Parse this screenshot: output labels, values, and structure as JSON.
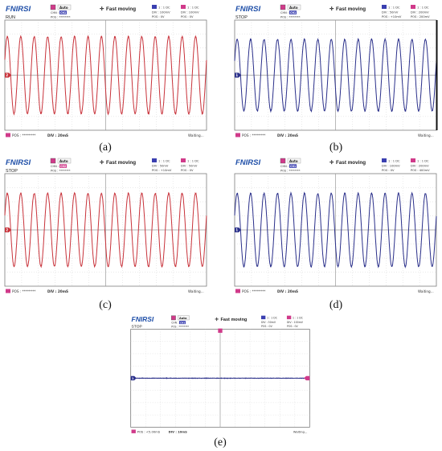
{
  "panels": [
    {
      "id": "a",
      "caption": "(a)",
      "brand": "FNIRSI",
      "status": "RUN",
      "mode": "Fast moving",
      "trig_mode": "Auto",
      "chn_label": "CHN :",
      "chn_value": "CH1",
      "pos_label": "POS : ********",
      "ch1": {
        "header": "1 : 1 DC",
        "div": "DIV : 100mV",
        "pos": "POS : 0V"
      },
      "ch2": {
        "header": "1 : 1 DC",
        "div": "DIV : 100mV",
        "pos": "POS : 0V"
      },
      "bottom_pos": "POS : ********",
      "bottom_div": "DIV : 20mS",
      "trigger_state": "Waiting...",
      "trace_color": "#c8323a",
      "cycles": 15,
      "amplitude_divs": 2.8,
      "stopped": false
    },
    {
      "id": "b",
      "caption": "(b)",
      "brand": "FNIRSI",
      "status": "STOP",
      "mode": "Fast moving",
      "trig_mode": "Auto",
      "chn_label": "CHN :",
      "chn_value": "CH1",
      "pos_label": "POS : ********",
      "ch1": {
        "header": "1 : 1 DC",
        "div": "DIV : 50mV",
        "pos": "POS : +10mV"
      },
      "ch2": {
        "header": "1 : 1 DC",
        "div": "DIV : 200mV",
        "pos": "POS : 200mV"
      },
      "bottom_pos": "POS : ********",
      "bottom_div": "DIV : 20mS",
      "trigger_state": "Waiting...",
      "trace_color": "#2a2f8a",
      "cycles": 15,
      "amplitude_divs": 2.6,
      "stopped": true
    },
    {
      "id": "c",
      "caption": "(c)",
      "brand": "FNIRSI",
      "status": "STOP",
      "mode": "Fast moving",
      "trig_mode": "Auto",
      "chn_label": "CHN :",
      "chn_value": "CH2",
      "pos_label": "POS : ********",
      "ch1": {
        "header": "1 : 1 DC",
        "div": "DIV : 50mV",
        "pos": "POS : +10mV"
      },
      "ch2": {
        "header": "1 : 1 DC",
        "div": "DIV : 50mV",
        "pos": "POS : 0V"
      },
      "bottom_pos": "POS : ********",
      "bottom_div": "DIV : 20mS",
      "trigger_state": "Waiting...",
      "trace_color": "#c8323a",
      "cycles": 15,
      "amplitude_divs": 2.6,
      "stopped": true
    },
    {
      "id": "d",
      "caption": "(d)",
      "brand": "FNIRSI",
      "status": "",
      "mode": "Fast moving",
      "trig_mode": "Auto",
      "chn_label": "CHN :",
      "chn_value": "CH1",
      "pos_label": "POS : ********",
      "ch1": {
        "header": "1 : 1 DC",
        "div": "DIV : 100mV",
        "pos": "POS : 0V"
      },
      "ch2": {
        "header": "1 : 1 DC",
        "div": "DIV : 200mV",
        "pos": "POS : 400mV"
      },
      "bottom_pos": "POS : ********",
      "bottom_div": "DIV : 20mS",
      "trigger_state": "Waiting...",
      "trace_color": "#2a2f8a",
      "cycles": 15,
      "amplitude_divs": 2.6,
      "stopped": false
    },
    {
      "id": "e",
      "caption": "(e)",
      "brand": "FNIRSI",
      "status": "STOP",
      "mode": "Fast moving",
      "trig_mode": "Auto",
      "chn_label": "CHN :",
      "chn_value": "CH1",
      "pos_label": "POS : ********",
      "ch1": {
        "header": "1 : 1 DC",
        "div": "DIV : 50mV",
        "pos": "POS : 0V"
      },
      "ch2": {
        "header": "1 : 1 DC",
        "div": "DIV : 100mV",
        "pos": "POS : 0V"
      },
      "bottom_pos": "POS : <5.00mS",
      "bottom_div": "DIV : 10mS",
      "trigger_state": "Waiting...",
      "trace_color": "#2a2f8a",
      "cycles": 0,
      "amplitude_divs": 0,
      "stopped": true
    }
  ],
  "colors": {
    "ch1_badge": "#3a3fb0",
    "ch2_badge": "#d03a8a",
    "grid": "#c9c9c9",
    "center_line": "#9a9a9a",
    "brand": "#1f4fa8",
    "frame": "#7d7d7d"
  }
}
